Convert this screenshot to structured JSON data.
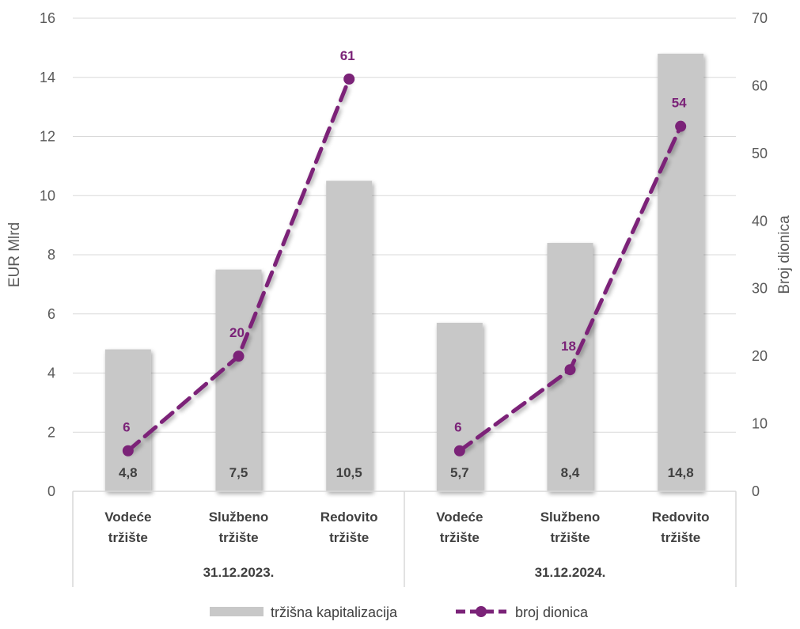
{
  "chart_data": {
    "type": "bar",
    "groups": [
      {
        "label": "31.12.2023.",
        "categories": [
          "Vodeće tržište",
          "Službeno tržište",
          "Redovito tržište"
        ]
      },
      {
        "label": "31.12.2024.",
        "categories": [
          "Vodeće tržište",
          "Službeno tržište",
          "Redovito tržište"
        ]
      }
    ],
    "category_lines": [
      [
        "Vodeće",
        "tržište"
      ],
      [
        "Službeno",
        "tržište"
      ],
      [
        "Redovito",
        "tržište"
      ]
    ],
    "series": [
      {
        "name": "tržišna kapitalizacija",
        "type": "bar",
        "axis": "left",
        "values": [
          4.8,
          7.5,
          10.5,
          5.7,
          8.4,
          14.8
        ],
        "labels": [
          "4,8",
          "7,5",
          "10,5",
          "5,7",
          "8,4",
          "14,8"
        ]
      },
      {
        "name": "broj dionica",
        "type": "line",
        "style": "dashed",
        "axis": "right",
        "segments": [
          [
            0,
            1,
            2
          ],
          [
            3,
            4,
            5
          ]
        ],
        "values": [
          6,
          20,
          61,
          6,
          18,
          54
        ],
        "labels": [
          "6",
          "20",
          "61",
          "6",
          "18",
          "54"
        ]
      }
    ],
    "y_left": {
      "label": "EUR Mlrd",
      "min": 0,
      "max": 16,
      "ticks": [
        "0",
        "2",
        "4",
        "6",
        "8",
        "10",
        "12",
        "14",
        "16"
      ]
    },
    "y_right": {
      "label": "Broj dionica",
      "min": 0,
      "max": 70,
      "ticks": [
        "0",
        "10",
        "20",
        "30",
        "40",
        "50",
        "60",
        "70"
      ]
    },
    "grid": true,
    "legend_position": "bottom",
    "colors": {
      "bar": "#c8c8c8",
      "line": "#7b2378",
      "grid": "#d9d9d9",
      "text": "#595959"
    }
  }
}
